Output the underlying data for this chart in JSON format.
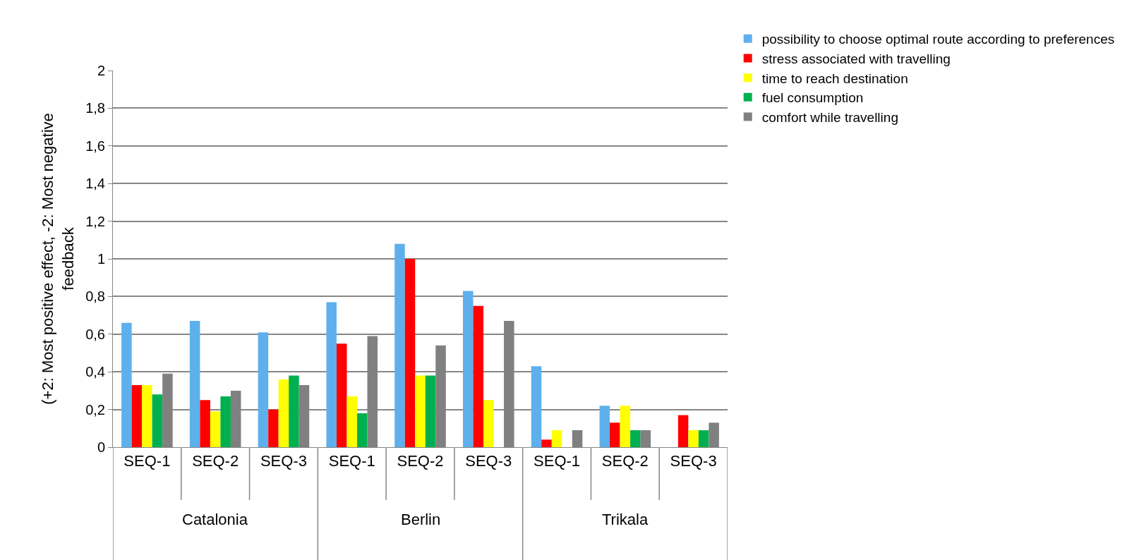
{
  "chart_data": {
    "type": "bar",
    "ylabel": "(+2: Most positive effect, -2: Most negative feedback",
    "categories": [
      "SEQ-1",
      "SEQ-2",
      "SEQ-3",
      "SEQ-1",
      "SEQ-2",
      "SEQ-3",
      "SEQ-1",
      "SEQ-2",
      "SEQ-3"
    ],
    "annotations": [
      "Catalonia",
      "Berlin",
      "Trikala"
    ],
    "series": [
      {
        "name": "possibility to choose optimal route according to preferences",
        "color": "#5eb0ec",
        "values": [
          0.66,
          0.67,
          0.61,
          0.77,
          1.08,
          0.83,
          0.43,
          0.22,
          null
        ]
      },
      {
        "name": "stress associated with travelling",
        "color": "#ff0000",
        "values": [
          0.33,
          0.25,
          0.2,
          0.55,
          1.0,
          0.75,
          0.04,
          0.13,
          0.17
        ]
      },
      {
        "name": "time to reach destination",
        "color": "#ffff00",
        "values": [
          0.33,
          0.19,
          0.36,
          0.27,
          0.38,
          0.25,
          0.09,
          0.22,
          0.09
        ]
      },
      {
        "name": "fuel consumption",
        "color": "#00b050",
        "values": [
          0.28,
          0.27,
          0.38,
          0.18,
          0.38,
          null,
          null,
          0.09,
          0.09
        ]
      },
      {
        "name": "comfort while travelling",
        "color": "#808080",
        "values": [
          0.39,
          0.3,
          0.33,
          0.59,
          0.54,
          0.67,
          0.09,
          0.09,
          0.13
        ]
      }
    ],
    "ylim": [
      0,
      2
    ],
    "yticks": [
      0,
      {
        "value": 0.2,
        "label": "0,2"
      },
      {
        "value": 0.4,
        "label": "0,4"
      },
      {
        "value": 0.6,
        "label": "0,6"
      },
      {
        "value": 0.8,
        "label": "0,8"
      },
      1,
      {
        "value": 1.2,
        "label": "1,2"
      },
      {
        "value": 1.4,
        "label": "1,4"
      },
      {
        "value": 1.6,
        "label": "1,6"
      },
      {
        "value": 1.8,
        "label": "1,8"
      },
      2
    ],
    "grid": "y",
    "legend": "top right"
  }
}
